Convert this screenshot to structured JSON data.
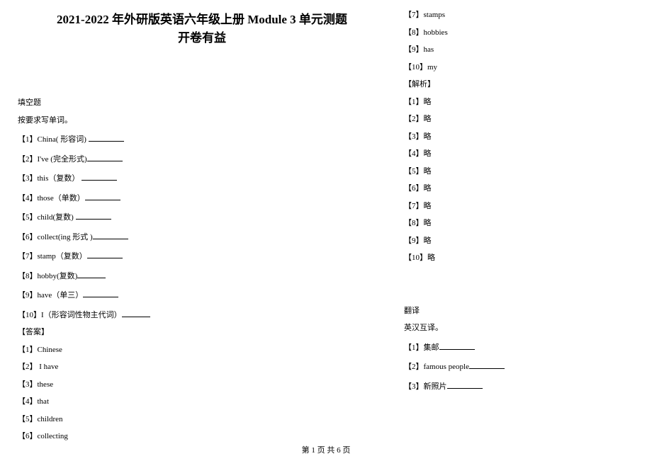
{
  "title_line1": "2021-2022 年外研版英语六年级上册  Module  3  单元测题",
  "title_line2": "开卷有益",
  "left_lines": [
    {
      "text": "填空题",
      "blank": false
    },
    {
      "text": "按要求写单词。",
      "blank": false
    },
    {
      "text": "【1】China( 形容词) ",
      "blank": true
    },
    {
      "text": "【2】I've (完全形式)",
      "blank": true
    },
    {
      "text": "【3】this（复数） ",
      "blank": true
    },
    {
      "text": "【4】those（单数）",
      "blank": true
    },
    {
      "text": "【5】child(复数) ",
      "blank": true
    },
    {
      "text": "【6】collect(ing 形式 )",
      "blank": true
    },
    {
      "text": "【7】stamp（复数）",
      "blank": true
    },
    {
      "text": "【8】hobby(复数)",
      "blank": true,
      "short": true
    },
    {
      "text": "【9】have（单三）",
      "blank": true
    },
    {
      "text": "【10】I（形容词性物主代词）",
      "blank": true,
      "short": true
    },
    {
      "text": "【答案】",
      "blank": false
    },
    {
      "text": "【1】Chinese",
      "blank": false
    },
    {
      "text": "【2】 I have",
      "blank": false
    },
    {
      "text": "【3】these",
      "blank": false
    },
    {
      "text": "【4】that",
      "blank": false
    },
    {
      "text": "【5】children",
      "blank": false
    },
    {
      "text": "【6】collecting",
      "blank": false
    }
  ],
  "right_lines": [
    {
      "text": "【7】stamps",
      "blank": false
    },
    {
      "text": "【8】hobbies",
      "blank": false
    },
    {
      "text": "【9】has",
      "blank": false
    },
    {
      "text": "【10】my",
      "blank": false
    },
    {
      "text": "【解析】",
      "blank": false
    },
    {
      "text": "【1】略",
      "blank": false
    },
    {
      "text": "【2】略",
      "blank": false
    },
    {
      "text": "【3】略",
      "blank": false
    },
    {
      "text": "【4】略",
      "blank": false
    },
    {
      "text": "【5】略",
      "blank": false
    },
    {
      "text": "【6】略",
      "blank": false
    },
    {
      "text": "【7】略",
      "blank": false
    },
    {
      "text": "【8】略",
      "blank": false
    },
    {
      "text": "【9】略",
      "blank": false
    },
    {
      "text": "【10】略",
      "blank": false
    },
    {
      "gap": "big"
    },
    {
      "text": "翻译",
      "blank": false
    },
    {
      "text": "英汉互译。",
      "blank": false
    },
    {
      "text": "【1】集邮",
      "blank": true
    },
    {
      "text": "【2】famous people",
      "blank": true
    },
    {
      "text": "【3】新照片",
      "blank": true
    }
  ],
  "footer": "第 1 页 共 6 页"
}
